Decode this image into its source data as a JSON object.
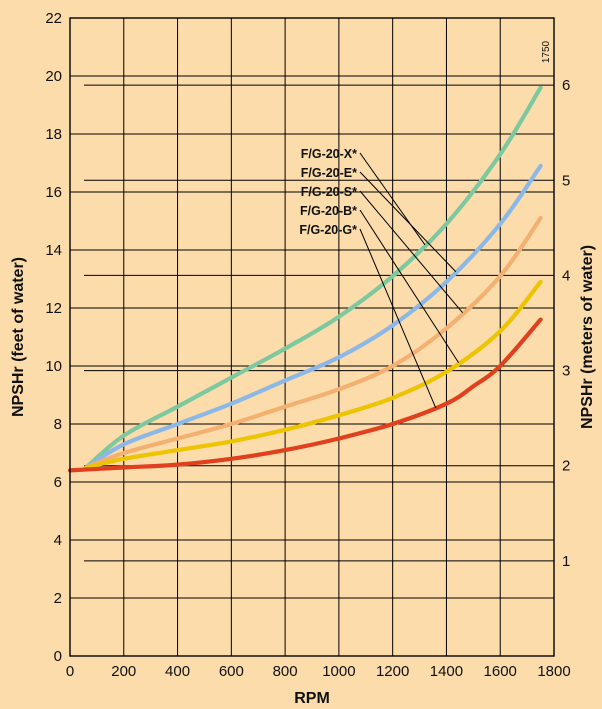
{
  "chart_data": {
    "type": "line",
    "title": "",
    "xlabel": "RPM",
    "ylabel": "NPSHr (feet of water)",
    "y2label": "NPSHr (meters of water)",
    "xlim": [
      0,
      1800
    ],
    "ylim": [
      0,
      22
    ],
    "y2lim": [
      0,
      6.7056
    ],
    "x_ticks": [
      0,
      200,
      400,
      600,
      800,
      1000,
      1200,
      1400,
      1600,
      1800
    ],
    "y_ticks": [
      0,
      2,
      4,
      6,
      8,
      10,
      12,
      14,
      16,
      18,
      20,
      22
    ],
    "y2_ticks": [
      1,
      2,
      3,
      4,
      5,
      6
    ],
    "grid": true,
    "legend": "annotated labels with leader lines",
    "annotation": "1750",
    "series": [
      {
        "name": "F/G-20-X*",
        "color": "#7ec8a0",
        "x": [
          60,
          200,
          400,
          600,
          800,
          1000,
          1200,
          1400,
          1600,
          1750
        ],
        "y": [
          6.5,
          7.6,
          8.6,
          9.6,
          10.6,
          11.7,
          13.1,
          14.9,
          17.3,
          19.6
        ]
      },
      {
        "name": "F/G-20-E*",
        "color": "#8cb8e8",
        "x": [
          60,
          200,
          400,
          600,
          800,
          1000,
          1200,
          1400,
          1600,
          1750
        ],
        "y": [
          6.5,
          7.3,
          8.0,
          8.7,
          9.5,
          10.3,
          11.4,
          12.9,
          14.9,
          16.9
        ]
      },
      {
        "name": "F/G-20-S*",
        "color": "#f4b070",
        "x": [
          60,
          200,
          400,
          600,
          800,
          1000,
          1200,
          1400,
          1600,
          1750
        ],
        "y": [
          6.5,
          7.0,
          7.5,
          8.0,
          8.6,
          9.2,
          10.0,
          11.3,
          13.1,
          15.1
        ]
      },
      {
        "name": "F/G-20-B*",
        "color": "#ecc400",
        "x": [
          60,
          200,
          400,
          600,
          800,
          1000,
          1200,
          1400,
          1600,
          1750
        ],
        "y": [
          6.5,
          6.8,
          7.1,
          7.4,
          7.8,
          8.3,
          8.9,
          9.8,
          11.2,
          12.9
        ]
      },
      {
        "name": "F/G-20-G*",
        "color": "#e0401e",
        "x": [
          0,
          200,
          400,
          600,
          800,
          1000,
          1200,
          1400,
          1500,
          1600,
          1750
        ],
        "y": [
          6.4,
          6.5,
          6.6,
          6.8,
          7.1,
          7.5,
          8.0,
          8.7,
          9.3,
          10.0,
          11.6
        ]
      }
    ]
  }
}
